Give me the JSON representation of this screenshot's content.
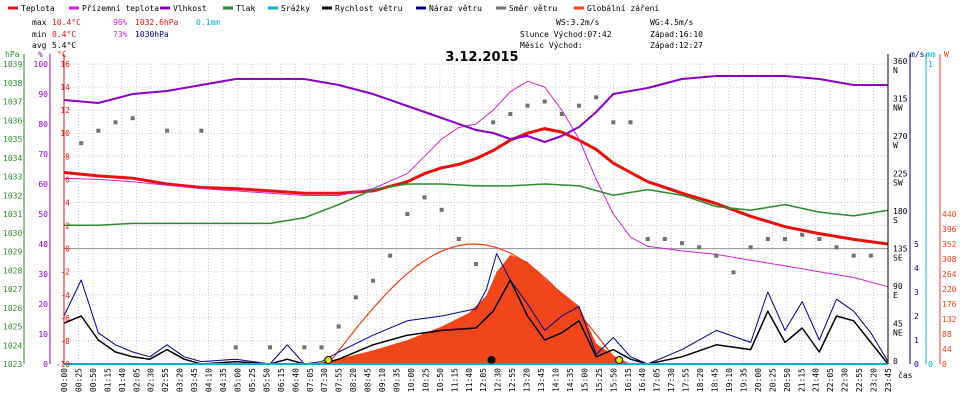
{
  "colors": {
    "temp": "#e8100e",
    "feels": "#d820d8",
    "humidity": "#8a00c8",
    "pressure": "#2c8a2c",
    "rain": "#00b0d0",
    "wind": "#000000",
    "gust": "#000090",
    "dir": "#707070",
    "solar": "#f03c10",
    "grid": "#c8c8c8"
  },
  "legend": [
    {
      "key": "temp",
      "label": "Teplota"
    },
    {
      "key": "feels",
      "label": "Přízemní teplota"
    },
    {
      "key": "humidity",
      "label": "Vlhkost"
    },
    {
      "key": "pressure",
      "label": "Tlak"
    },
    {
      "key": "rain",
      "label": "Srážky"
    },
    {
      "key": "wind",
      "label": "Rychlost větru"
    },
    {
      "key": "gust",
      "label": "Náraz větru"
    },
    {
      "key": "dir",
      "label": "Směr větru"
    },
    {
      "key": "solar",
      "label": "Globální záření"
    }
  ],
  "stats": {
    "max_label": "max",
    "max_temp": "10.4°C",
    "max_hum": "96%",
    "max_press": "1032.6hPa",
    "max_rain": "0.1mm",
    "min_label": "min",
    "min_temp": "0.4°C",
    "min_hum": "73%",
    "min_press": "1030hPa",
    "avg_label": "avg",
    "avg_temp": "5.4°C"
  },
  "info": {
    "ws": "WS:3.2m/s",
    "wg": "WG:4.5m/s",
    "sun": "Slunce Východ:07:42",
    "sun_set": "Západ:16:10",
    "moon": "Měsíc  Východ:",
    "moon_set": "Západ:12:27"
  },
  "axis_labels": {
    "hpa": "hPa",
    "pct": "%",
    "degc": "°C",
    "ms": "m/s",
    "mm": "mm",
    "w": "W",
    "cas": "čas"
  },
  "chart_data": {
    "type": "line",
    "title": "3.12.2015",
    "x_ticks": [
      "00:00",
      "00:25",
      "00:50",
      "01:15",
      "01:40",
      "02:05",
      "02:30",
      "02:55",
      "03:20",
      "03:45",
      "04:10",
      "04:35",
      "05:00",
      "05:25",
      "05:50",
      "06:15",
      "06:40",
      "07:05",
      "07:30",
      "07:55",
      "08:20",
      "08:45",
      "09:10",
      "09:35",
      "10:00",
      "10:25",
      "10:50",
      "11:15",
      "11:40",
      "12:05",
      "12:30",
      "12:55",
      "13:20",
      "13:45",
      "14:10",
      "14:35",
      "15:00",
      "15:25",
      "15:50",
      "16:15",
      "16:40",
      "17:05",
      "17:30",
      "17:55",
      "18:20",
      "18:45",
      "19:10",
      "19:35",
      "20:00",
      "20:25",
      "20:50",
      "21:15",
      "21:40",
      "22:05",
      "22:30",
      "22:55",
      "23:20",
      "23:45"
    ],
    "axes": {
      "hpa": {
        "ticks": [
          "1039",
          "1038",
          "1037",
          "1036",
          "1035",
          "1034",
          "1033",
          "1032",
          "1031",
          "1030",
          "1029",
          "1028",
          "1027",
          "1026",
          "1025",
          "1024",
          "1023"
        ]
      },
      "pct": {
        "ticks": [
          "100",
          "90",
          "80",
          "70",
          "60",
          "50",
          "40",
          "30",
          "20",
          "10",
          "0"
        ]
      },
      "degc": {
        "ticks": [
          "16",
          "14",
          "12",
          "10",
          "8",
          "6",
          "4",
          "2",
          "0",
          "-2",
          "-4",
          "-6",
          "-8",
          "-10"
        ]
      },
      "deg": {
        "ticks": [
          [
            "360",
            "N"
          ],
          [
            "315",
            "NW"
          ],
          [
            "270",
            "W"
          ],
          [
            "225",
            "SW"
          ],
          [
            "180",
            "S"
          ],
          [
            "135",
            "SE"
          ],
          [
            "90",
            "E"
          ],
          [
            "45",
            "NE"
          ],
          [
            "0",
            ""
          ]
        ]
      },
      "ms": {
        "ticks": [
          "5",
          "4",
          "3",
          "2",
          "1",
          "0"
        ]
      },
      "mm": {
        "ticks": [
          "1",
          "0"
        ]
      },
      "w": {
        "ticks": [
          "440",
          "396",
          "352",
          "308",
          "264",
          "220",
          "176",
          "132",
          "88",
          "44",
          "0"
        ]
      }
    },
    "temp_range": [
      -10,
      16
    ],
    "hum_range": [
      0,
      100
    ],
    "press_range": [
      1023,
      1039
    ],
    "wind_range": [
      0,
      5
    ],
    "dir_range": [
      0,
      360
    ],
    "solar_range": [
      0,
      440
    ],
    "series": [
      {
        "name": "Teplota",
        "key": "temp",
        "axis": "degc",
        "x": [
          0,
          1,
          2,
          3,
          4,
          5,
          6,
          7,
          8,
          9,
          10,
          10.5,
          11,
          11.5,
          12,
          12.5,
          13,
          13.5,
          14,
          14.5,
          15,
          15.5,
          16,
          17,
          18,
          19,
          20,
          21,
          22,
          23,
          24
        ],
        "y": [
          6.6,
          6.3,
          6.1,
          5.6,
          5.3,
          5.2,
          5.0,
          4.8,
          4.8,
          5.0,
          5.8,
          6.5,
          7.0,
          7.3,
          7.8,
          8.5,
          9.4,
          10.0,
          10.4,
          10.1,
          9.4,
          8.6,
          7.4,
          5.8,
          4.8,
          3.9,
          2.8,
          1.9,
          1.3,
          0.8,
          0.4
        ]
      },
      {
        "name": "Přízemní teplota",
        "key": "feels",
        "axis": "degc",
        "x": [
          0,
          1,
          2,
          3,
          4,
          5,
          6,
          7,
          8,
          9,
          10,
          10.5,
          11,
          11.5,
          12,
          12.5,
          13,
          13.5,
          14,
          14.5,
          15,
          15.5,
          16,
          16.5,
          17,
          18,
          19,
          20,
          21,
          22,
          23,
          24
        ],
        "y": [
          6.1,
          6.0,
          5.8,
          5.5,
          5.2,
          5.0,
          4.8,
          4.6,
          4.6,
          5.2,
          6.5,
          8.0,
          9.5,
          10.5,
          10.8,
          12.0,
          13.6,
          14.5,
          14.0,
          12.0,
          9.5,
          6.0,
          3.0,
          1.0,
          0.2,
          -0.2,
          -0.5,
          -1.0,
          -1.5,
          -2.0,
          -2.5,
          -3.3
        ]
      },
      {
        "name": "Vlhkost",
        "key": "humidity",
        "axis": "pct",
        "x": [
          0,
          1,
          2,
          3,
          4,
          5,
          6,
          7,
          8,
          9,
          10,
          11,
          11.5,
          12,
          12.5,
          13,
          13.5,
          14,
          14.5,
          15,
          15.5,
          16,
          17,
          18,
          19,
          20,
          21,
          22,
          23,
          24
        ],
        "y": [
          88,
          87,
          90,
          91,
          93,
          95,
          95,
          95,
          93,
          90,
          86,
          82,
          80,
          78,
          77,
          75,
          76,
          74,
          76,
          79,
          84,
          90,
          92,
          95,
          96,
          96,
          96,
          95,
          93,
          93
        ]
      },
      {
        "name": "Tlak",
        "key": "pressure",
        "axis": "hpa",
        "x": [
          0,
          1,
          2,
          3,
          4,
          5,
          6,
          7,
          8,
          9,
          10,
          11,
          12,
          13,
          14,
          15,
          16,
          17,
          18,
          19,
          20,
          21,
          22,
          23,
          24
        ],
        "y": [
          1030.4,
          1030.4,
          1030.5,
          1030.5,
          1030.5,
          1030.5,
          1030.5,
          1030.8,
          1031.5,
          1032.3,
          1032.6,
          1032.6,
          1032.5,
          1032.5,
          1032.6,
          1032.5,
          1032.0,
          1032.3,
          1032.0,
          1031.4,
          1031.2,
          1031.5,
          1031.1,
          1030.9,
          1031.2
        ]
      },
      {
        "name": "Globální záření",
        "key": "solar",
        "axis": "w",
        "x": [
          7.3,
          8,
          9,
          10,
          11,
          11.8,
          12.3,
          12.6,
          13,
          13.5,
          14,
          14.5,
          15,
          15.5,
          16,
          16.5
        ],
        "y": [
          0,
          15,
          40,
          70,
          110,
          150,
          200,
          270,
          320,
          300,
          250,
          210,
          170,
          60,
          25,
          0
        ]
      },
      {
        "name": "Rychlost větru",
        "key": "wind",
        "axis": "ms",
        "x": [
          0,
          0.5,
          1,
          1.5,
          2,
          2.5,
          3,
          3.5,
          4,
          5,
          6,
          6.5,
          7,
          7.5,
          8,
          9,
          10,
          11,
          12,
          12.5,
          13,
          13.5,
          14,
          14.5,
          15,
          15.5,
          16,
          16.5,
          17,
          18,
          19,
          20,
          20.5,
          21,
          21.5,
          22,
          22.5,
          23,
          23.5,
          24
        ],
        "y": [
          1.7,
          2.0,
          1.0,
          0.5,
          0.3,
          0.2,
          0.6,
          0.2,
          0.0,
          0.1,
          0.0,
          0.2,
          0.0,
          0.0,
          0.2,
          0.8,
          1.2,
          1.4,
          1.5,
          2.2,
          3.5,
          2.0,
          1.0,
          1.3,
          1.8,
          0.3,
          0.6,
          0.2,
          0.0,
          0.3,
          0.8,
          0.6,
          2.2,
          0.9,
          1.5,
          0.5,
          2.0,
          1.8,
          0.9,
          0.0
        ]
      },
      {
        "name": "Náraz větru",
        "key": "gust",
        "axis": "ms",
        "x": [
          0,
          0.5,
          1,
          1.5,
          2,
          2.5,
          3,
          3.5,
          4,
          5,
          6,
          6.5,
          7,
          7.5,
          8,
          9,
          10,
          11,
          12,
          12.3,
          12.6,
          13,
          13.5,
          14,
          14.5,
          15,
          15.5,
          16,
          16.5,
          17,
          18,
          19,
          20,
          20.5,
          21,
          21.5,
          22,
          22.5,
          23,
          23.5,
          24
        ],
        "y": [
          2.0,
          3.5,
          1.3,
          0.8,
          0.5,
          0.3,
          0.8,
          0.3,
          0.1,
          0.2,
          0.0,
          0.8,
          0.0,
          0.1,
          0.5,
          1.2,
          1.8,
          2.0,
          2.3,
          3.1,
          4.6,
          3.5,
          2.5,
          1.4,
          2.0,
          2.4,
          0.4,
          1.1,
          0.3,
          0.0,
          0.6,
          1.4,
          0.9,
          3.0,
          1.4,
          2.6,
          1.0,
          2.7,
          2.2,
          1.3,
          0.1
        ]
      },
      {
        "name": "Srážky",
        "key": "rain",
        "axis": "mm",
        "x": [
          0,
          24
        ],
        "y": [
          0,
          0
        ]
      }
    ],
    "wind_dir": {
      "name": "Směr větru",
      "axis": "deg",
      "x": [
        0.5,
        1,
        1.5,
        2,
        3,
        4,
        5,
        6,
        7,
        7.5,
        8,
        8.5,
        9,
        9.5,
        10,
        10.5,
        11,
        11.5,
        12,
        12.5,
        13,
        13.5,
        14,
        14.5,
        15,
        15.5,
        16,
        16.5,
        17,
        17.5,
        18,
        18.5,
        19,
        19.5,
        20,
        20.5,
        21,
        21.5,
        22,
        22.5,
        23,
        23.5
      ],
      "y": [
        265,
        280,
        290,
        295,
        280,
        280,
        20,
        20,
        20,
        20,
        45,
        80,
        100,
        130,
        180,
        200,
        185,
        150,
        120,
        290,
        300,
        310,
        315,
        300,
        310,
        320,
        290,
        290,
        150,
        150,
        145,
        140,
        130,
        110,
        140,
        150,
        150,
        155,
        150,
        140,
        130,
        130
      ]
    },
    "markers": [
      {
        "label": "sunrise",
        "x": 7.7
      },
      {
        "label": "sunset",
        "x": 16.17
      },
      {
        "label": "moonset",
        "x": 12.45
      }
    ]
  }
}
